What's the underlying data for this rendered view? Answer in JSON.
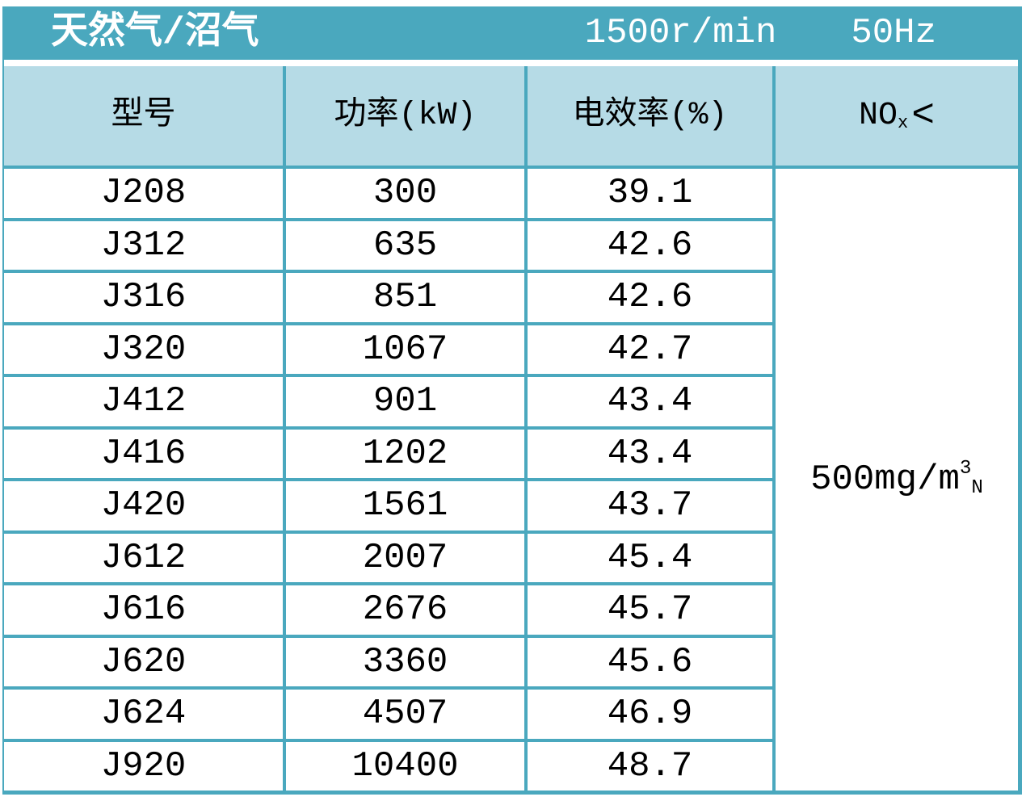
{
  "colors": {
    "teal": "#4aa8be",
    "light_blue": "#b6dbe6",
    "row_bg": "#ffffff",
    "header_text": "#ffffff",
    "body_text": "#000000"
  },
  "title_bar": {
    "fuel_type": "天然气/沼气",
    "speed": "1500r/min",
    "frequency": "50Hz"
  },
  "column_headers": {
    "model": "型号",
    "power": "功率(kW)",
    "efficiency": "电效率(%)",
    "nox": {
      "base": "NO",
      "subscript": "x",
      "operator": "<"
    }
  },
  "nox_limit": {
    "base": "500mg/m",
    "superscript": "3",
    "subscript": "N"
  },
  "rows": [
    {
      "model": "J208",
      "power": "300",
      "efficiency": "39.1"
    },
    {
      "model": "J312",
      "power": "635",
      "efficiency": "42.6"
    },
    {
      "model": "J316",
      "power": "851",
      "efficiency": "42.6"
    },
    {
      "model": "J320",
      "power": "1067",
      "efficiency": "42.7"
    },
    {
      "model": "J412",
      "power": "901",
      "efficiency": "43.4"
    },
    {
      "model": "J416",
      "power": "1202",
      "efficiency": "43.4"
    },
    {
      "model": "J420",
      "power": "1561",
      "efficiency": "43.7"
    },
    {
      "model": "J612",
      "power": "2007",
      "efficiency": "45.4"
    },
    {
      "model": "J616",
      "power": "2676",
      "efficiency": "45.7"
    },
    {
      "model": "J620",
      "power": "3360",
      "efficiency": "45.6"
    },
    {
      "model": "J624",
      "power": "4507",
      "efficiency": "46.9"
    },
    {
      "model": "J920",
      "power": "10400",
      "efficiency": "48.7"
    }
  ]
}
